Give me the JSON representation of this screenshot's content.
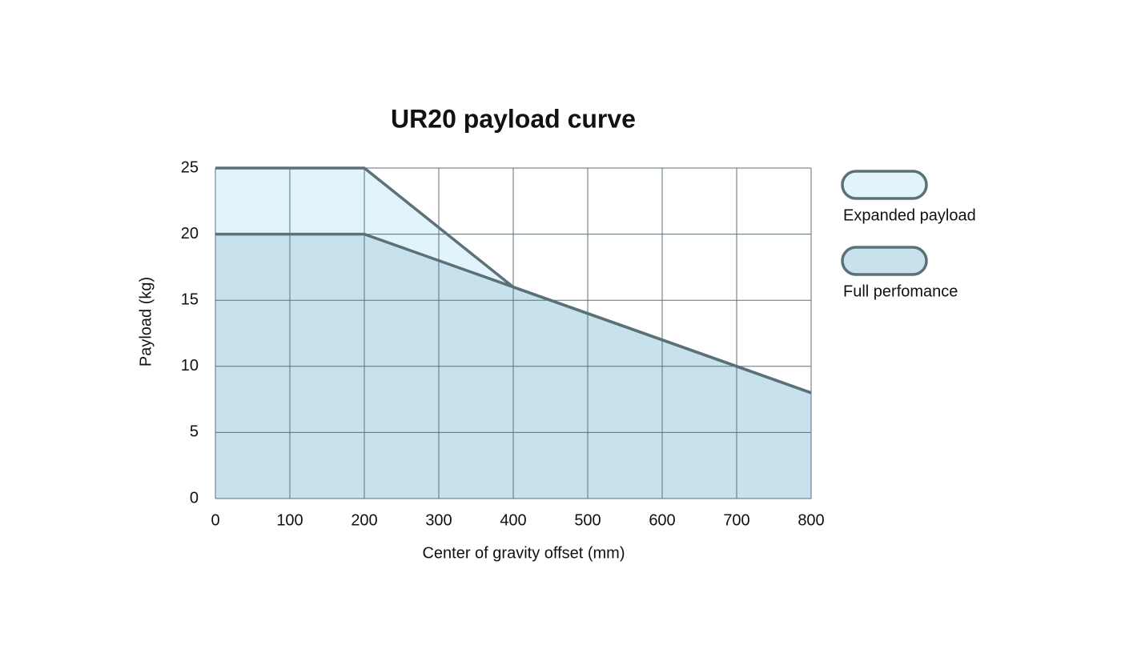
{
  "chart_data": {
    "type": "area",
    "title": "UR20 payload curve",
    "x_label": "Center of gravity offset (mm)",
    "y_label": "Payload (kg)",
    "x": [
      0,
      200,
      400,
      800
    ],
    "series": [
      {
        "name": "Expanded payload",
        "color": "#e1f3fb",
        "values": [
          25,
          25,
          16,
          8
        ]
      },
      {
        "name": "Full perfomance",
        "color": "#c7e2ec",
        "values": [
          20,
          20,
          16,
          8
        ]
      }
    ],
    "line_color": "#5a7178",
    "xlim": [
      0,
      800
    ],
    "xticks": [
      0,
      100,
      200,
      300,
      400,
      500,
      600,
      700,
      800
    ],
    "ylim": [
      0,
      25
    ],
    "yticks": [
      0,
      5,
      10,
      15,
      20,
      25
    ],
    "grid": true,
    "legend": "right"
  }
}
